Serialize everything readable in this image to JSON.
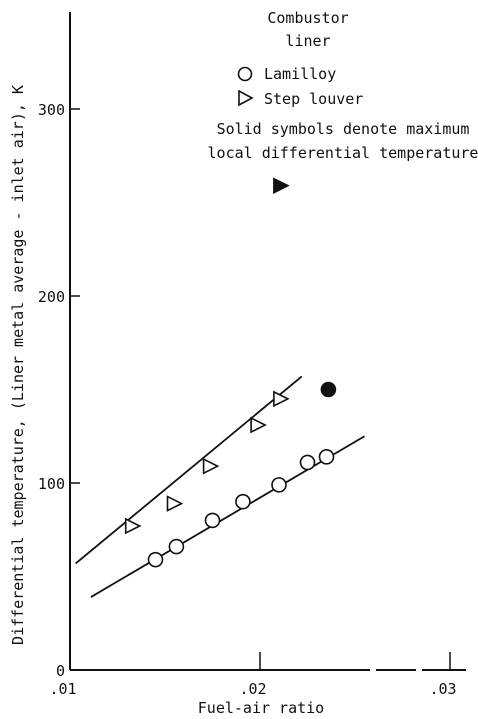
{
  "chart_data": {
    "type": "scatter",
    "xlabel": "Fuel-air ratio",
    "ylabel": "Differential temperature,  (Liner metal average - inlet air),  K",
    "xlim": [
      0.01,
      0.03
    ],
    "ylim": [
      0,
      350
    ],
    "x_ticks": [
      0.01,
      0.02,
      0.03
    ],
    "x_tick_labels": [
      ".01",
      ".02",
      ".03"
    ],
    "y_ticks": [
      0,
      100,
      200,
      300
    ],
    "y_tick_labels": [
      "0",
      "100",
      "200",
      "300"
    ],
    "grid": false,
    "legend_title": [
      "Combustor",
      "liner"
    ],
    "note": [
      "Solid symbols denote maximum",
      "local differential temperature"
    ],
    "series": [
      {
        "name": "Lamilloy",
        "marker": "circle",
        "points": [
          [
            0.0145,
            59
          ],
          [
            0.0156,
            66
          ],
          [
            0.0175,
            80
          ],
          [
            0.0191,
            90
          ],
          [
            0.021,
            99
          ],
          [
            0.0225,
            111
          ],
          [
            0.0235,
            114
          ]
        ],
        "fit": [
          [
            0.0111,
            39
          ],
          [
            0.0255,
            125
          ]
        ]
      },
      {
        "name": "Step louver",
        "marker": "triangle-right",
        "points": [
          [
            0.0133,
            77
          ],
          [
            0.0155,
            89
          ],
          [
            0.0174,
            109
          ],
          [
            0.0199,
            131
          ],
          [
            0.0211,
            145
          ]
        ],
        "fit": [
          [
            0.0103,
            57
          ],
          [
            0.0222,
            157
          ]
        ]
      }
    ],
    "max_local_points": [
      {
        "series": "Lamilloy",
        "marker": "circle-filled",
        "x": 0.0236,
        "y": 150
      },
      {
        "series": "Step louver",
        "marker": "triangle-right-filled",
        "x": 0.0211,
        "y": 259
      }
    ]
  }
}
